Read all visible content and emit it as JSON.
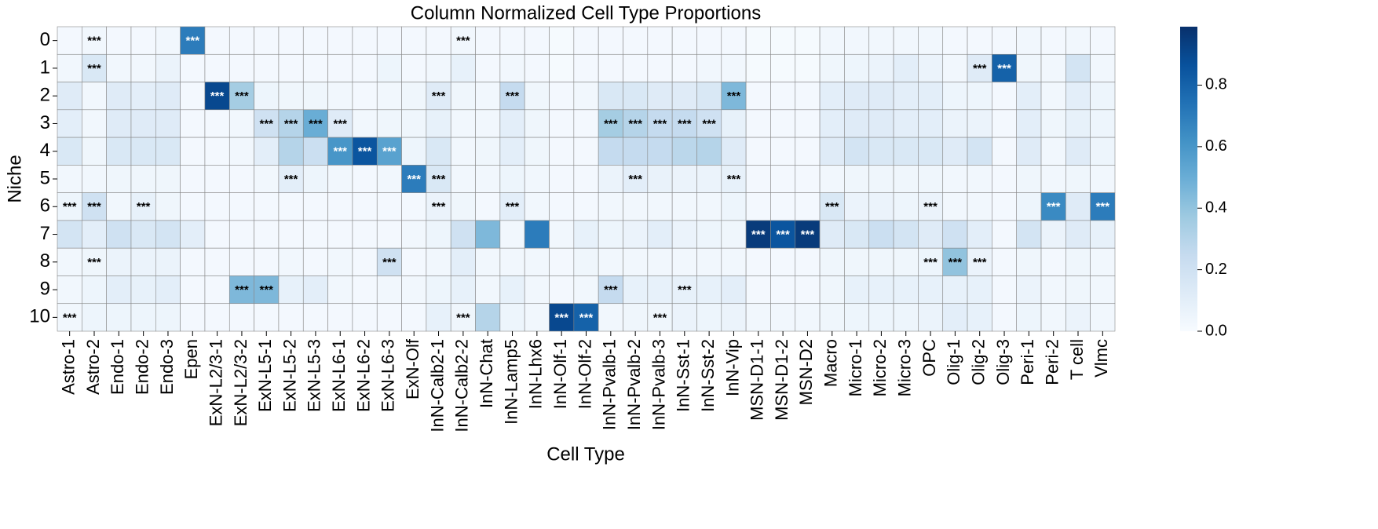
{
  "chart_data": {
    "type": "heatmap",
    "title": "Column Normalized Cell Type Proportions",
    "x_label": "Cell Type",
    "y_label": "Niche",
    "categories": [
      "Astro-1",
      "Astro-2",
      "Endo-1",
      "Endo-2",
      "Endo-3",
      "Epen",
      "ExN-L2/3-1",
      "ExN-L2/3-2",
      "ExN-L5-1",
      "ExN-L5-2",
      "ExN-L5-3",
      "ExN-L6-1",
      "ExN-L6-2",
      "ExN-L6-3",
      "ExN-Olf",
      "InN-Calb2-1",
      "InN-Calb2-2",
      "InN-Chat",
      "InN-Lamp5",
      "InN-Lhx6",
      "InN-Olf-1",
      "InN-Olf-2",
      "InN-Pvalb-1",
      "InN-Pvalb-2",
      "InN-Pvalb-3",
      "InN-Sst-1",
      "InN-Sst-2",
      "InN-Vip",
      "MSN-D1-1",
      "MSN-D1-2",
      "MSN-D2",
      "Macro",
      "Micro-1",
      "Micro-2",
      "Micro-3",
      "OPC",
      "Olig-1",
      "Olig-2",
      "Olig-3",
      "Peri-1",
      "Peri-2",
      "T cell",
      "Vlmc"
    ],
    "rows": [
      "0",
      "1",
      "2",
      "3",
      "4",
      "5",
      "6",
      "7",
      "8",
      "9",
      "10"
    ],
    "values": [
      [
        0.02,
        0.03,
        0.02,
        0.02,
        0.03,
        0.7,
        0.02,
        0.02,
        0.02,
        0.02,
        0.02,
        0.02,
        0.02,
        0.02,
        0.02,
        0.02,
        0.03,
        0.02,
        0.02,
        0.02,
        0.01,
        0.02,
        0.02,
        0.02,
        0.02,
        0.02,
        0.02,
        0.02,
        0.01,
        0.01,
        0.01,
        0.03,
        0.03,
        0.03,
        0.03,
        0.03,
        0.02,
        0.02,
        0.02,
        0.03,
        0.02,
        0.03,
        0.02
      ],
      [
        0.03,
        0.15,
        0.03,
        0.03,
        0.06,
        0.02,
        0.02,
        0.02,
        0.02,
        0.02,
        0.02,
        0.02,
        0.02,
        0.05,
        0.02,
        0.03,
        0.08,
        0.02,
        0.03,
        0.02,
        0.01,
        0.02,
        0.02,
        0.02,
        0.02,
        0.02,
        0.03,
        0.03,
        0.01,
        0.01,
        0.01,
        0.04,
        0.05,
        0.06,
        0.1,
        0.06,
        0.03,
        0.12,
        0.8,
        0.04,
        0.03,
        0.18,
        0.03
      ],
      [
        0.12,
        0.03,
        0.12,
        0.1,
        0.12,
        0.02,
        0.9,
        0.35,
        0.05,
        0.04,
        0.04,
        0.03,
        0.02,
        0.03,
        0.04,
        0.12,
        0.04,
        0.03,
        0.25,
        0.04,
        0.02,
        0.03,
        0.15,
        0.15,
        0.12,
        0.12,
        0.15,
        0.45,
        0.02,
        0.02,
        0.02,
        0.1,
        0.12,
        0.12,
        0.1,
        0.1,
        0.05,
        0.05,
        0.02,
        0.1,
        0.03,
        0.1,
        0.05
      ],
      [
        0.1,
        0.03,
        0.12,
        0.12,
        0.12,
        0.02,
        0.02,
        0.03,
        0.2,
        0.3,
        0.5,
        0.12,
        0.03,
        0.04,
        0.04,
        0.08,
        0.03,
        0.03,
        0.1,
        0.04,
        0.02,
        0.02,
        0.35,
        0.3,
        0.25,
        0.25,
        0.2,
        0.08,
        0.02,
        0.02,
        0.02,
        0.1,
        0.12,
        0.12,
        0.1,
        0.1,
        0.06,
        0.06,
        0.02,
        0.1,
        0.04,
        0.08,
        0.05
      ],
      [
        0.15,
        0.04,
        0.15,
        0.15,
        0.15,
        0.02,
        0.02,
        0.03,
        0.1,
        0.3,
        0.22,
        0.6,
        0.85,
        0.55,
        0.05,
        0.15,
        0.03,
        0.04,
        0.1,
        0.04,
        0.02,
        0.02,
        0.25,
        0.25,
        0.25,
        0.28,
        0.3,
        0.12,
        0.02,
        0.02,
        0.02,
        0.12,
        0.18,
        0.15,
        0.15,
        0.15,
        0.12,
        0.18,
        0.02,
        0.12,
        0.03,
        0.12,
        0.05
      ],
      [
        0.03,
        0.03,
        0.04,
        0.04,
        0.04,
        0.02,
        0.02,
        0.02,
        0.03,
        0.1,
        0.05,
        0.03,
        0.02,
        0.03,
        0.7,
        0.15,
        0.03,
        0.03,
        0.05,
        0.03,
        0.02,
        0.02,
        0.06,
        0.1,
        0.07,
        0.06,
        0.06,
        0.08,
        0.02,
        0.02,
        0.02,
        0.03,
        0.04,
        0.04,
        0.04,
        0.04,
        0.03,
        0.03,
        0.02,
        0.04,
        0.03,
        0.04,
        0.03
      ],
      [
        0.05,
        0.2,
        0.03,
        0.08,
        0.04,
        0.02,
        0.02,
        0.02,
        0.02,
        0.02,
        0.02,
        0.02,
        0.02,
        0.02,
        0.02,
        0.06,
        0.04,
        0.02,
        0.1,
        0.03,
        0.02,
        0.02,
        0.03,
        0.03,
        0.03,
        0.03,
        0.03,
        0.05,
        0.02,
        0.02,
        0.02,
        0.15,
        0.06,
        0.06,
        0.05,
        0.06,
        0.03,
        0.03,
        0.02,
        0.05,
        0.65,
        0.12,
        0.7
      ],
      [
        0.18,
        0.1,
        0.2,
        0.15,
        0.18,
        0.1,
        0.02,
        0.02,
        0.02,
        0.02,
        0.02,
        0.02,
        0.02,
        0.02,
        0.03,
        0.05,
        0.2,
        0.45,
        0.03,
        0.7,
        0.03,
        0.08,
        0.05,
        0.06,
        0.1,
        0.06,
        0.05,
        0.04,
        0.95,
        0.85,
        0.95,
        0.12,
        0.15,
        0.22,
        0.18,
        0.12,
        0.2,
        0.1,
        0.02,
        0.18,
        0.06,
        0.12,
        0.08
      ],
      [
        0.03,
        0.04,
        0.06,
        0.06,
        0.06,
        0.02,
        0.02,
        0.02,
        0.02,
        0.03,
        0.02,
        0.03,
        0.02,
        0.2,
        0.02,
        0.03,
        0.1,
        0.03,
        0.03,
        0.03,
        0.02,
        0.04,
        0.03,
        0.03,
        0.03,
        0.03,
        0.03,
        0.03,
        0.02,
        0.02,
        0.02,
        0.04,
        0.04,
        0.04,
        0.04,
        0.05,
        0.4,
        0.06,
        0.02,
        0.04,
        0.02,
        0.04,
        0.03
      ],
      [
        0.03,
        0.05,
        0.1,
        0.08,
        0.1,
        0.02,
        0.02,
        0.45,
        0.45,
        0.08,
        0.1,
        0.03,
        0.02,
        0.03,
        0.03,
        0.05,
        0.08,
        0.03,
        0.08,
        0.03,
        0.02,
        0.03,
        0.25,
        0.08,
        0.08,
        0.08,
        0.08,
        0.1,
        0.02,
        0.02,
        0.02,
        0.04,
        0.08,
        0.08,
        0.08,
        0.08,
        0.08,
        0.08,
        0.02,
        0.06,
        0.03,
        0.04,
        0.03
      ],
      [
        0.03,
        0.05,
        0.05,
        0.05,
        0.05,
        0.02,
        0.02,
        0.02,
        0.02,
        0.02,
        0.02,
        0.02,
        0.02,
        0.02,
        0.02,
        0.08,
        0.04,
        0.3,
        0.05,
        0.03,
        0.9,
        0.8,
        0.03,
        0.04,
        0.04,
        0.06,
        0.05,
        0.06,
        0.03,
        0.03,
        0.03,
        0.04,
        0.05,
        0.05,
        0.05,
        0.06,
        0.1,
        0.08,
        0.02,
        0.05,
        0.03,
        0.06,
        0.03
      ]
    ],
    "annotations": [
      [
        null,
        "***",
        null,
        null,
        null,
        "***",
        null,
        null,
        null,
        null,
        null,
        null,
        null,
        null,
        null,
        null,
        "***",
        null,
        null,
        null,
        null,
        null,
        null,
        null,
        null,
        null,
        null,
        null,
        null,
        null,
        null,
        null,
        null,
        null,
        null,
        null,
        null,
        null,
        null,
        null,
        null,
        null,
        null
      ],
      [
        null,
        "***",
        null,
        null,
        null,
        null,
        null,
        null,
        null,
        null,
        null,
        null,
        null,
        null,
        null,
        null,
        null,
        null,
        null,
        null,
        null,
        null,
        null,
        null,
        null,
        null,
        null,
        null,
        null,
        null,
        null,
        null,
        null,
        null,
        null,
        null,
        null,
        "***",
        "***",
        null,
        null,
        null,
        null
      ],
      [
        null,
        null,
        null,
        null,
        null,
        null,
        "***",
        "***",
        null,
        null,
        null,
        null,
        null,
        null,
        null,
        "***",
        null,
        null,
        "***",
        null,
        null,
        null,
        null,
        null,
        null,
        null,
        null,
        "***",
        null,
        null,
        null,
        null,
        null,
        null,
        null,
        null,
        null,
        null,
        null,
        null,
        null,
        null,
        null
      ],
      [
        null,
        null,
        null,
        null,
        null,
        null,
        null,
        null,
        "***",
        "***",
        "***",
        "***",
        null,
        null,
        null,
        null,
        null,
        null,
        null,
        null,
        null,
        null,
        "***",
        "***",
        "***",
        "***",
        "***",
        null,
        null,
        null,
        null,
        null,
        null,
        null,
        null,
        null,
        null,
        null,
        null,
        null,
        null,
        null,
        null
      ],
      [
        null,
        null,
        null,
        null,
        null,
        null,
        null,
        null,
        null,
        null,
        null,
        "***",
        "***",
        "***",
        null,
        null,
        null,
        null,
        null,
        null,
        null,
        null,
        null,
        null,
        null,
        null,
        null,
        null,
        null,
        null,
        null,
        null,
        null,
        null,
        null,
        null,
        null,
        null,
        null,
        null,
        null,
        null,
        null
      ],
      [
        null,
        null,
        null,
        null,
        null,
        null,
        null,
        null,
        null,
        "***",
        null,
        null,
        null,
        null,
        "***",
        "***",
        null,
        null,
        null,
        null,
        null,
        null,
        null,
        "***",
        null,
        null,
        null,
        "***",
        null,
        null,
        null,
        null,
        null,
        null,
        null,
        null,
        null,
        null,
        null,
        null,
        null,
        null,
        null
      ],
      [
        "***",
        "***",
        null,
        "***",
        null,
        null,
        null,
        null,
        null,
        null,
        null,
        null,
        null,
        null,
        null,
        "***",
        null,
        null,
        "***",
        null,
        null,
        null,
        null,
        null,
        null,
        null,
        null,
        null,
        null,
        null,
        null,
        "***",
        null,
        null,
        null,
        "***",
        null,
        null,
        null,
        null,
        "***",
        null,
        "***"
      ],
      [
        null,
        null,
        null,
        null,
        null,
        null,
        null,
        null,
        null,
        null,
        null,
        null,
        null,
        null,
        null,
        null,
        null,
        null,
        null,
        null,
        null,
        null,
        null,
        null,
        null,
        null,
        null,
        null,
        "***",
        "***",
        "***",
        null,
        null,
        null,
        null,
        null,
        null,
        null,
        null,
        null,
        null,
        null,
        null
      ],
      [
        null,
        "***",
        null,
        null,
        null,
        null,
        null,
        null,
        null,
        null,
        null,
        null,
        null,
        "***",
        null,
        null,
        null,
        null,
        null,
        null,
        null,
        null,
        null,
        null,
        null,
        null,
        null,
        null,
        null,
        null,
        null,
        null,
        null,
        null,
        null,
        "***",
        "***",
        "***",
        null,
        null,
        null,
        null,
        null
      ],
      [
        null,
        null,
        null,
        null,
        null,
        null,
        null,
        "***",
        "***",
        null,
        null,
        null,
        null,
        null,
        null,
        null,
        null,
        null,
        null,
        null,
        null,
        null,
        "***",
        null,
        null,
        "***",
        null,
        null,
        null,
        null,
        null,
        null,
        null,
        null,
        null,
        null,
        null,
        null,
        null,
        null,
        null,
        null,
        null
      ],
      [
        "***",
        null,
        null,
        null,
        null,
        null,
        null,
        null,
        null,
        null,
        null,
        null,
        null,
        null,
        null,
        null,
        "***",
        null,
        null,
        null,
        "***",
        "***",
        null,
        null,
        "***",
        null,
        null,
        null,
        null,
        null,
        null,
        null,
        null,
        null,
        null,
        null,
        null,
        null,
        null,
        null,
        null,
        null,
        null
      ]
    ],
    "colorscale": [
      "#f7fbff",
      "#deebf7",
      "#c6dbef",
      "#9ecae1",
      "#6baed6",
      "#4292c6",
      "#2171b5",
      "#08519c",
      "#08306b"
    ],
    "zlim": [
      0,
      0.99
    ],
    "zticks": [
      {
        "value": 0,
        "label": "0.0"
      },
      0.2,
      0.4,
      0.6,
      0.8
    ]
  }
}
